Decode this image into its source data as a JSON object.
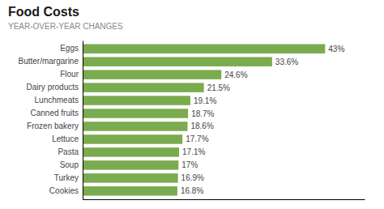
{
  "chart_data": {
    "type": "bar",
    "orientation": "horizontal",
    "title": "Food Costs",
    "subtitle": "YEAR-OVER-YEAR CHANGES",
    "categories": [
      "Cookies",
      "Turkey",
      "Soup",
      "Pasta",
      "Lettuce",
      "Frozen bakery",
      "Canned fruits",
      "Lunchmeats",
      "Dairy products",
      "Flour",
      "Butter/margarine",
      "Eggs"
    ],
    "values": [
      16.8,
      16.9,
      17.0,
      17.1,
      17.7,
      18.6,
      18.7,
      19.1,
      21.5,
      24.6,
      33.6,
      43.0
    ],
    "value_labels": [
      "16.8%",
      "16.9%",
      "17%",
      "17.1%",
      "17.7%",
      "18.6%",
      "18.7%",
      "19.1%",
      "21.5%",
      "24.6%",
      "33.6%",
      "43%"
    ],
    "data_labels": true,
    "color": "#7aab4e",
    "xlim": [
      0,
      50
    ],
    "tick_labels": "y",
    "grid": false
  }
}
